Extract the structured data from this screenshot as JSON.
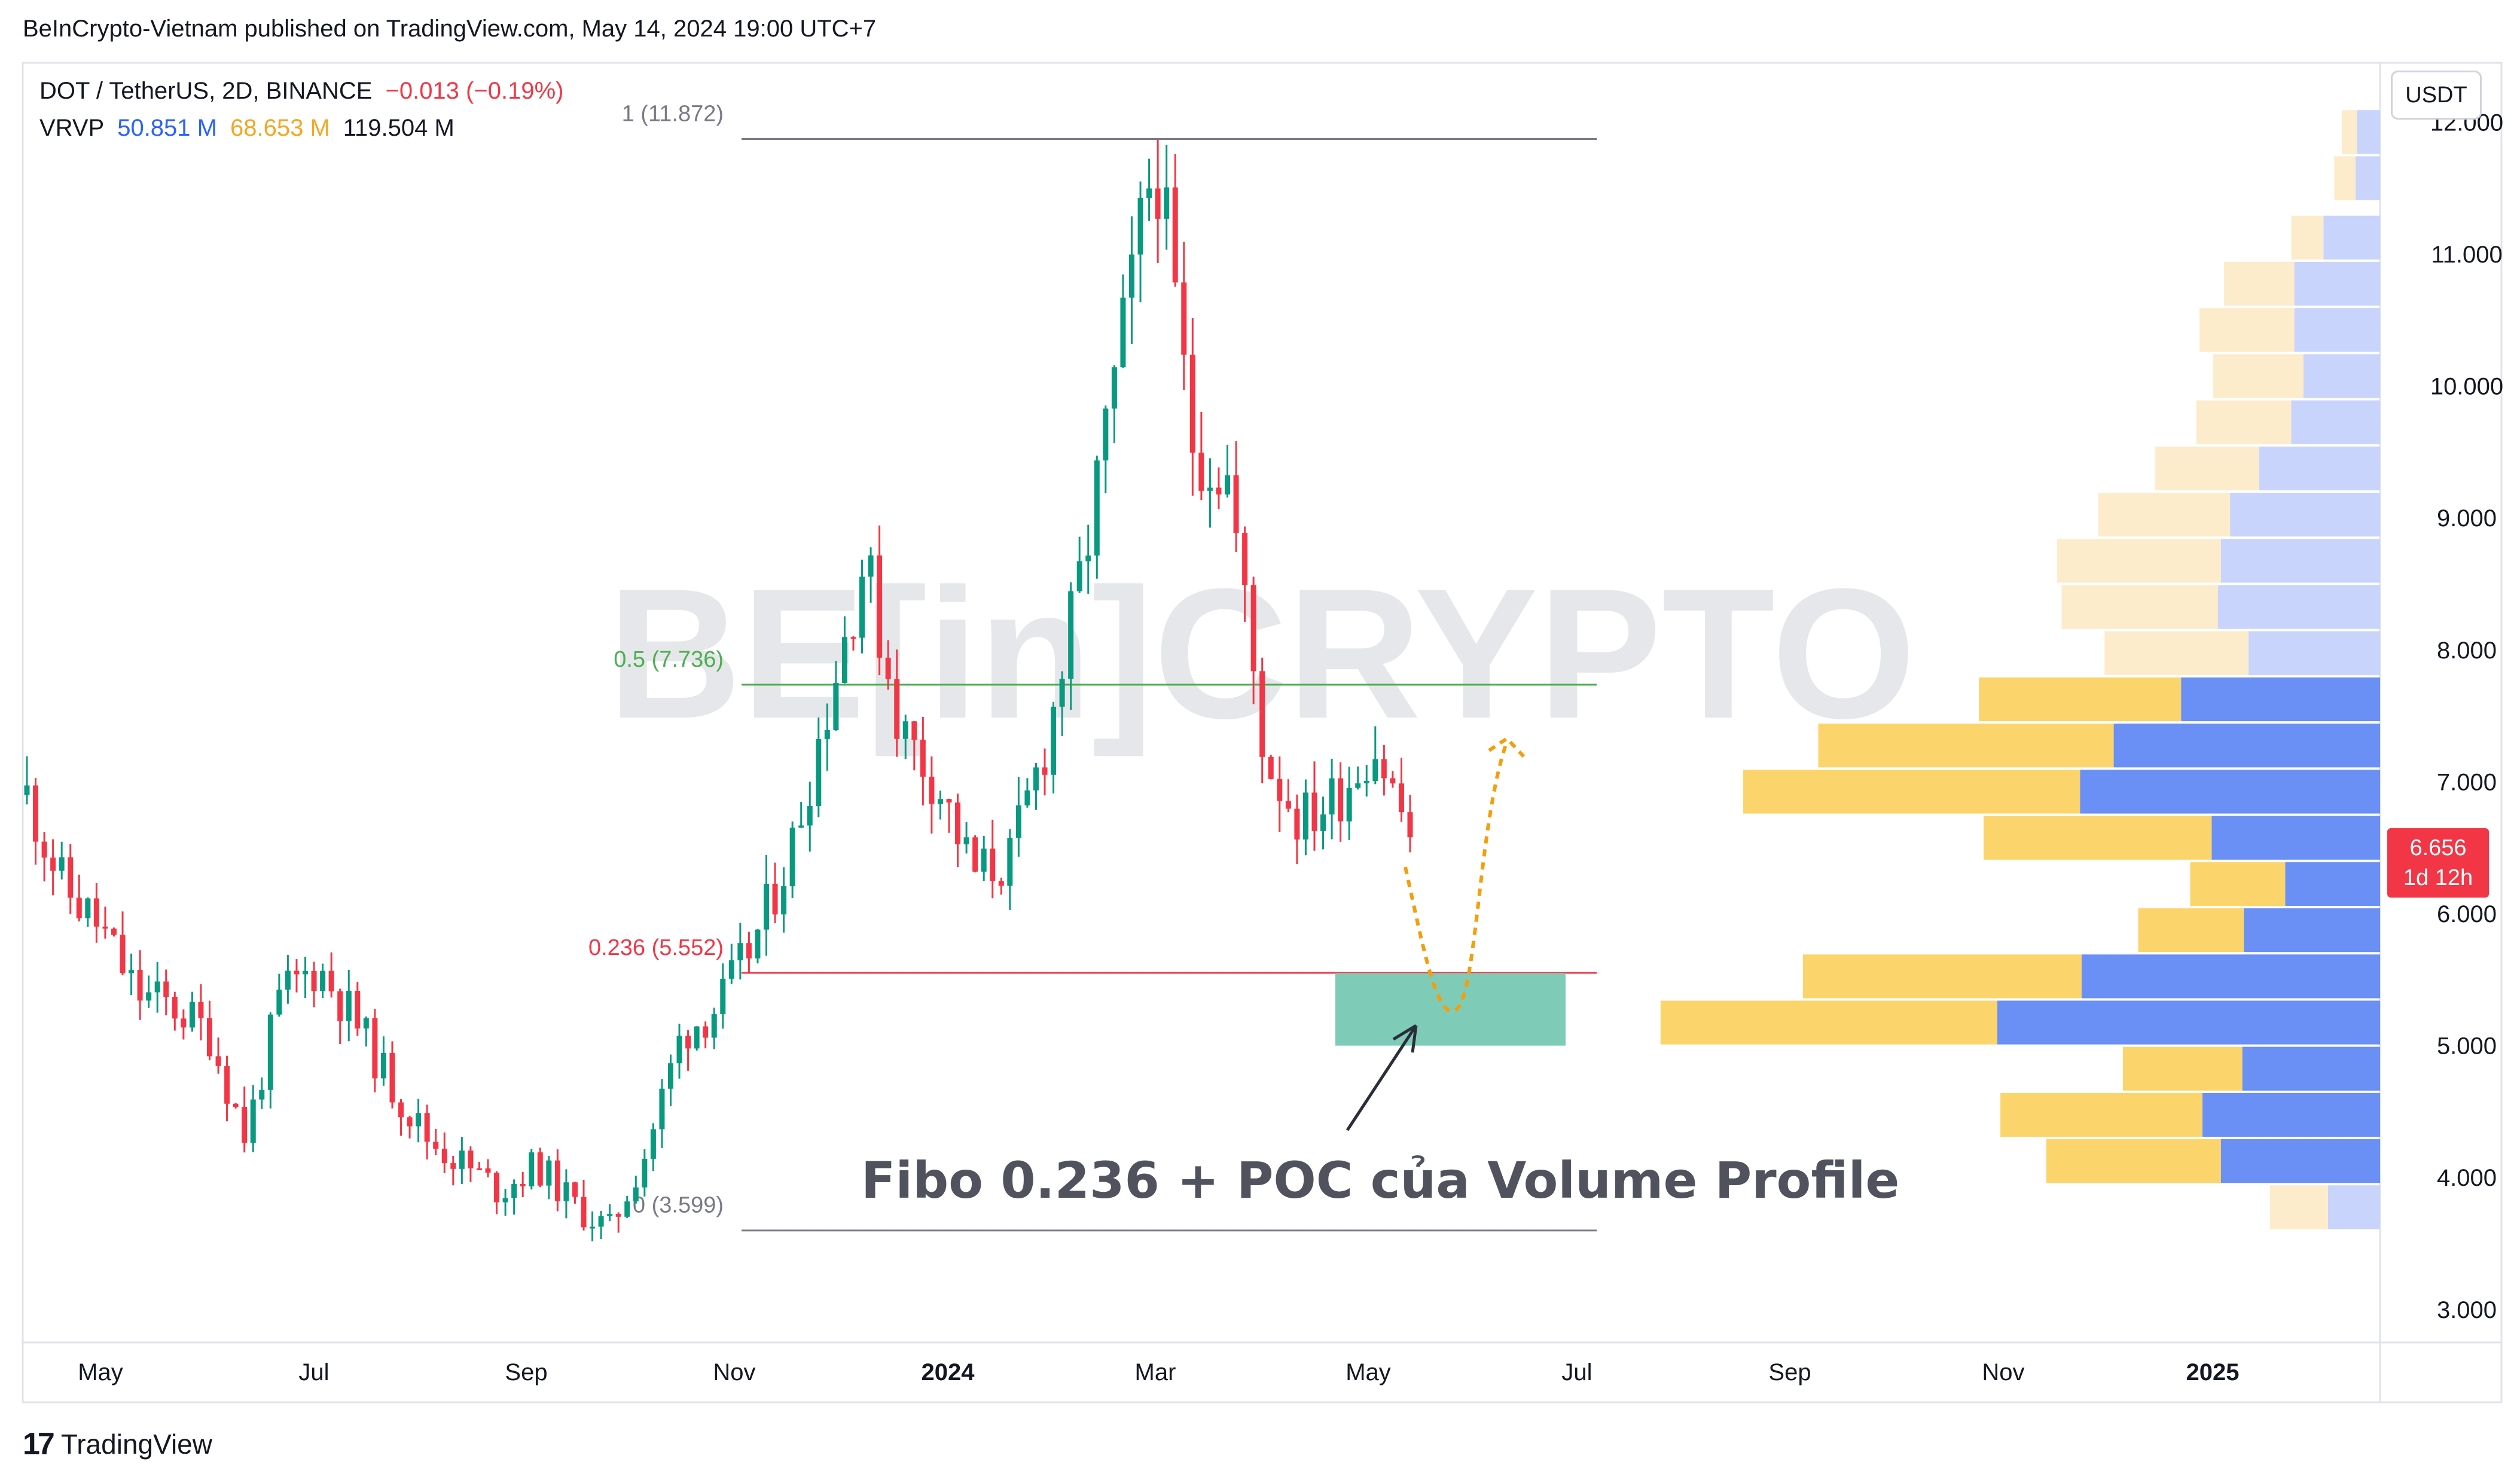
{
  "header": {
    "published": "BeInCrypto-Vietnam published on TradingView.com, May 14, 2024 19:00 UTC+7",
    "symbol": "DOT / TetherUS, 2D, BINANCE",
    "change": "−0.013 (−0.19%)",
    "indicator": "VRVP",
    "vrvp_values": [
      "50.851 M",
      "68.653 M",
      "119.504 M"
    ]
  },
  "currency": "USDT",
  "last_price": {
    "value": "6.656",
    "countdown": "1d 12h"
  },
  "watermark": "BE[in]CRYPTO",
  "footer": {
    "brand": "TradingView"
  },
  "colors": {
    "up": "#089981",
    "down": "#f23645",
    "fib_mid": "#4caf50",
    "fib_low": "#f23645",
    "vol_up": "#fbd46b",
    "vol_down": "#6a8ff5",
    "zone": "#7ecbb8",
    "projection": "#f59e0b"
  },
  "chart_data": {
    "type": "candlestick",
    "x_axis_labels": [
      "May",
      "Jul",
      "Sep",
      "Nov",
      "2024",
      "Mar",
      "May",
      "Jul",
      "Sep",
      "Nov",
      "2025"
    ],
    "y_ticks": [
      "12.000",
      "11.000",
      "10.000",
      "9.000",
      "8.000",
      "7.000",
      "6.000",
      "5.000",
      "4.000",
      "3.000"
    ],
    "ylim": [
      2.75,
      12.45
    ],
    "fib_levels": [
      {
        "label": "1 (11.872)",
        "value": 11.872
      },
      {
        "label": "0.5 (7.736)",
        "value": 7.736
      },
      {
        "label": "0.236 (5.552)",
        "value": 5.552
      },
      {
        "label": "0 (3.599)",
        "value": 3.599
      }
    ],
    "annotation": "Fibo 0.236 + POC của Volume Profile",
    "zone": {
      "low": 5.0,
      "high": 5.55
    },
    "close_path": [
      6.9,
      6.2,
      5.9,
      5.4,
      5.3,
      5.1,
      4.3,
      5.4,
      5.6,
      5.2,
      4.7,
      4.3,
      4.1,
      3.9,
      4.1,
      3.8,
      3.6,
      4.2,
      5.1,
      5.3,
      5.8,
      6.5,
      7.6,
      8.7,
      7.4,
      7.0,
      6.3,
      6.4,
      7.3,
      8.6,
      10.2,
      11.8,
      9.6,
      9.3,
      7.2,
      6.7,
      6.9,
      7.3,
      6.6
    ],
    "volume_profile": [
      {
        "low": 11.75,
        "high": 12.1,
        "up": 1,
        "down": 1.5
      },
      {
        "low": 11.4,
        "high": 11.75,
        "up": 1.4,
        "down": 1.6
      },
      {
        "low": 10.95,
        "high": 11.3,
        "up": 2.1,
        "down": 3.7
      },
      {
        "low": 10.6,
        "high": 10.95,
        "up": 4.6,
        "down": 5.6
      },
      {
        "low": 10.25,
        "high": 10.6,
        "up": 6.2,
        "down": 5.6
      },
      {
        "low": 9.9,
        "high": 10.25,
        "up": 5.9,
        "down": 5.0
      },
      {
        "low": 9.55,
        "high": 9.9,
        "up": 6.2,
        "down": 5.8
      },
      {
        "low": 9.2,
        "high": 9.55,
        "up": 6.8,
        "down": 7.9
      },
      {
        "low": 8.85,
        "high": 9.2,
        "up": 8.6,
        "down": 9.8
      },
      {
        "low": 8.5,
        "high": 8.85,
        "up": 10.7,
        "down": 10.4
      },
      {
        "low": 8.15,
        "high": 8.5,
        "up": 10.2,
        "down": 10.6
      },
      {
        "low": 7.8,
        "high": 8.15,
        "up": 9.4,
        "down": 8.6
      },
      {
        "low": 7.45,
        "high": 7.8,
        "up": 13.2,
        "down": 13.0
      },
      {
        "low": 7.1,
        "high": 7.45,
        "up": 19.3,
        "down": 17.4
      },
      {
        "low": 6.75,
        "high": 7.1,
        "up": 22.0,
        "down": 19.6
      },
      {
        "low": 6.4,
        "high": 6.75,
        "up": 14.9,
        "down": 11.0
      },
      {
        "low": 6.05,
        "high": 6.4,
        "up": 6.2,
        "down": 6.2
      },
      {
        "low": 5.7,
        "high": 6.05,
        "up": 6.9,
        "down": 8.9
      },
      {
        "low": 5.35,
        "high": 5.7,
        "up": 18.2,
        "down": 19.5
      },
      {
        "low": 5.0,
        "high": 5.35,
        "up": 22.0,
        "down": 25.0
      },
      {
        "low": 4.65,
        "high": 5.0,
        "up": 7.8,
        "down": 9.0
      },
      {
        "low": 4.3,
        "high": 4.65,
        "up": 13.2,
        "down": 11.6
      },
      {
        "low": 3.95,
        "high": 4.3,
        "up": 11.4,
        "down": 10.4
      },
      {
        "low": 3.6,
        "high": 3.95,
        "up": 3.8,
        "down": 3.4
      }
    ]
  }
}
